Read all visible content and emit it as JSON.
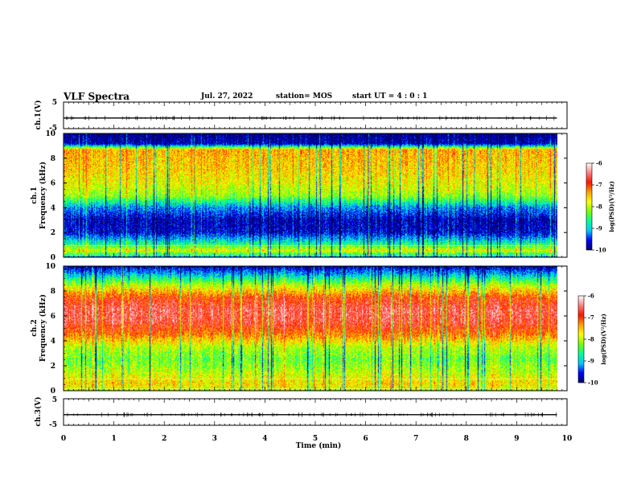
{
  "header": {
    "title": "VLF Spectra",
    "date": "Jul. 27, 2022",
    "station": "station= MOS",
    "start_ut": "start  UT =   4 : 0  : 1"
  },
  "colors": {
    "spectrum_scale": [
      "#00006e",
      "#0000ff",
      "#00c8ff",
      "#00ff9a",
      "#78ff00",
      "#ffff00",
      "#ffa000",
      "#ff1400",
      "#ff8080",
      "#ffffff"
    ],
    "trace": "#000000"
  },
  "chart_data": [
    {
      "type": "line",
      "name": "ch1-waveform",
      "ylabel": "ch.1(V)",
      "ylim": [
        -5,
        5
      ],
      "yticks": [
        "5",
        "-5"
      ],
      "xlim": [
        0,
        10
      ],
      "approx_level_V": -1.0,
      "x_extent_min": [
        0,
        9.8
      ]
    },
    {
      "type": "heatmap",
      "name": "ch1-spectrogram",
      "ylabel": "ch.1\nFrequency (kHz)",
      "ylabel_lines": [
        "ch.1",
        "Frequency (kHz)"
      ],
      "ylim": [
        0,
        10
      ],
      "yticks": [
        "0",
        "2",
        "4",
        "6",
        "8",
        "10"
      ],
      "xlim": [
        0,
        10
      ],
      "x_extent_min": [
        0,
        9.8
      ],
      "colorbar": {
        "label": "log(PSD)(V²/Hz)",
        "ticks": [
          "-6",
          "-7",
          "-8",
          "-9",
          "-10"
        ],
        "range": [
          -10,
          -6
        ]
      },
      "intensity_profile_kHz_log": [
        [
          0,
          -9.1
        ],
        [
          0.5,
          -7.8
        ],
        [
          1,
          -8.6
        ],
        [
          2,
          -9.7
        ],
        [
          3,
          -9.8
        ],
        [
          4,
          -9.2
        ],
        [
          5,
          -8.1
        ],
        [
          6,
          -7.8
        ],
        [
          7,
          -7.6
        ],
        [
          8,
          -7.5
        ],
        [
          8.7,
          -7.4
        ],
        [
          9.2,
          -9.8
        ],
        [
          10,
          -10.0
        ]
      ]
    },
    {
      "type": "heatmap",
      "name": "ch2-spectrogram",
      "ylabel": "ch.2\nFrequency (kHz)",
      "ylabel_lines": [
        "ch.2",
        "Frequency (kHz)"
      ],
      "ylim": [
        0,
        10
      ],
      "yticks": [
        "0",
        "2",
        "4",
        "6",
        "8",
        "10"
      ],
      "xlim": [
        0,
        10
      ],
      "x_extent_min": [
        0,
        9.8
      ],
      "colorbar": {
        "label": "log(PSD)(V²/Hz)",
        "ticks": [
          "-6",
          "-7",
          "-8",
          "-9",
          "-10"
        ],
        "range": [
          -10,
          -6
        ]
      },
      "intensity_profile_kHz_log": [
        [
          0,
          -8.0
        ],
        [
          0.5,
          -7.6
        ],
        [
          1.5,
          -8.0
        ],
        [
          2.5,
          -8.3
        ],
        [
          3.5,
          -8.0
        ],
        [
          4.5,
          -7.2
        ],
        [
          5.5,
          -6.7
        ],
        [
          6.5,
          -6.6
        ],
        [
          7.5,
          -7.0
        ],
        [
          8.5,
          -8.0
        ],
        [
          9.3,
          -9.0
        ],
        [
          10,
          -9.8
        ]
      ]
    },
    {
      "type": "line",
      "name": "ch3-waveform",
      "ylabel": "ch.3(V)",
      "ylim": [
        -5,
        5
      ],
      "yticks": [
        "5",
        "-5"
      ],
      "xlim": [
        0,
        10
      ],
      "approx_level_V": -1.0,
      "x_extent_min": [
        0,
        9.8
      ]
    }
  ],
  "x_axis": {
    "label": "Time (min)",
    "ticks": [
      "0",
      "1",
      "2",
      "3",
      "4",
      "5",
      "6",
      "7",
      "8",
      "9",
      "10"
    ]
  }
}
